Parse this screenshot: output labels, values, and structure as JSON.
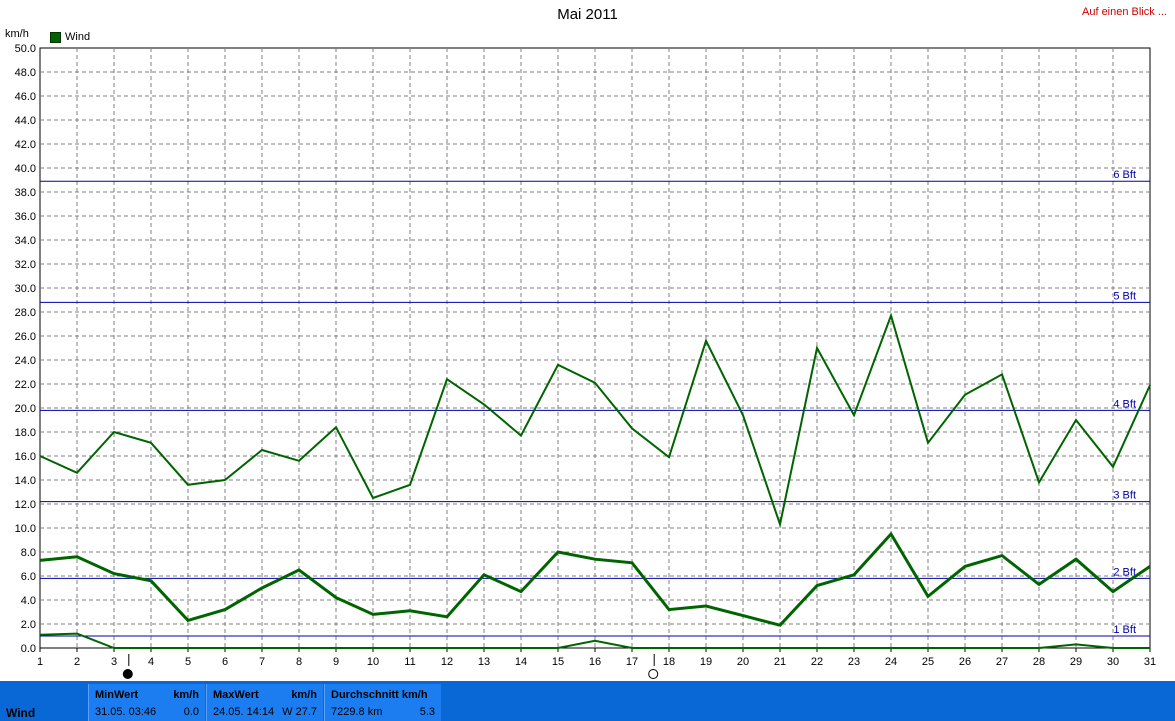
{
  "header": {
    "title": "Mai 2011",
    "link_text": "Auf einen Blick ...",
    "unit": "km/h",
    "legend": "Wind"
  },
  "colors": {
    "series": "#006400",
    "beaufort_line": "#0000aa",
    "grid": "#808080",
    "panel": "#0a67d6"
  },
  "chart_data": {
    "type": "line",
    "title": "Mai 2011",
    "ylabel": "km/h",
    "ylim": [
      0,
      50
    ],
    "ytick_step": 2,
    "x": [
      1,
      2,
      3,
      4,
      5,
      6,
      7,
      8,
      9,
      10,
      11,
      12,
      13,
      14,
      15,
      16,
      17,
      18,
      19,
      20,
      21,
      22,
      23,
      24,
      25,
      26,
      27,
      28,
      29,
      30,
      31
    ],
    "grid": true,
    "legend_position": "top-left",
    "series": [
      {
        "name": "Wind",
        "role": "max",
        "values": [
          16.0,
          14.6,
          18.0,
          17.1,
          13.6,
          14.0,
          16.5,
          15.6,
          18.4,
          12.5,
          13.6,
          22.4,
          20.3,
          17.7,
          23.6,
          22.1,
          18.3,
          15.9,
          25.6,
          19.4,
          10.3,
          25.0,
          19.4,
          27.7,
          17.1,
          21.1,
          22.8,
          13.8,
          19.0,
          15.1,
          21.9
        ]
      },
      {
        "role": "avg",
        "values": [
          7.3,
          7.6,
          6.2,
          5.6,
          2.3,
          3.2,
          5.0,
          6.5,
          4.2,
          2.8,
          3.1,
          2.6,
          6.1,
          4.7,
          8.0,
          7.4,
          7.1,
          3.2,
          3.5,
          2.7,
          1.9,
          5.2,
          6.1,
          9.5,
          4.3,
          6.8,
          7.7,
          5.3,
          7.4,
          4.7,
          6.8
        ]
      },
      {
        "role": "min",
        "values": [
          1.1,
          1.2,
          0.0,
          0.0,
          0.0,
          0.0,
          0.0,
          0.0,
          0.0,
          0.0,
          0.0,
          0.0,
          0.0,
          0.0,
          0.0,
          0.6,
          0.0,
          0.0,
          0.0,
          0.0,
          0.0,
          0.0,
          0.0,
          0.0,
          0.0,
          0.0,
          0.0,
          0.0,
          0.3,
          0.0,
          0.0
        ]
      }
    ],
    "reference_lines": [
      {
        "label": "1 Bft",
        "value": 1.0
      },
      {
        "label": "2 Bft",
        "value": 5.8
      },
      {
        "label": "3 Bft",
        "value": 12.2
      },
      {
        "label": "4 Bft",
        "value": 19.8
      },
      {
        "label": "5 Bft",
        "value": 28.8
      },
      {
        "label": "6 Bft",
        "value": 38.9
      }
    ],
    "markers": [
      {
        "x": 3.4,
        "type": "filled"
      },
      {
        "x": 17.6,
        "type": "hollow"
      }
    ]
  },
  "stats": {
    "name": "Wind",
    "min": {
      "header": "MinWert",
      "unit": "km/h",
      "when": "31.05.  03:46",
      "value": "0.0"
    },
    "max": {
      "header": "MaxWert",
      "unit": "km/h",
      "when": "24.05.  14:14",
      "value": "W  27.7"
    },
    "avg": {
      "header": "Durchschnitt km/h",
      "when": "7229.8 km",
      "value": "5.3"
    }
  }
}
